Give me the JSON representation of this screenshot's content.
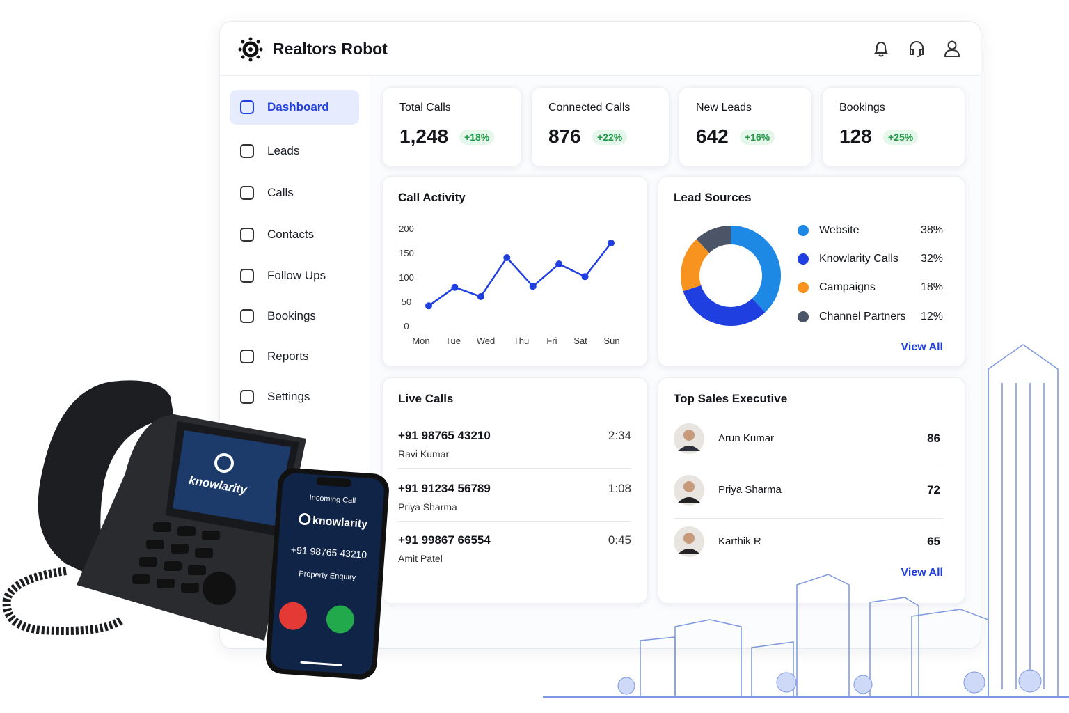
{
  "header": {
    "brand": "Realtors Robot"
  },
  "nav": [
    "Dashboard",
    "Leads",
    "Calls",
    "Contacts",
    "Follow Ups",
    "Bookings",
    "Reports",
    "Settings"
  ],
  "stats": [
    {
      "label": "Total Calls",
      "value": "1,248",
      "change": "+18%"
    },
    {
      "label": "Connected Calls",
      "value": "876",
      "change": "+22%"
    },
    {
      "label": "New Leads",
      "value": "642",
      "change": "+16%"
    },
    {
      "label": "Bookings",
      "value": "128",
      "change": "+25%"
    }
  ],
  "call_activity": {
    "type": "line",
    "title": "Call Activity",
    "categories": [
      "Mon",
      "Tue",
      "Wed",
      null,
      "Thu",
      "Fri",
      "Sat",
      "Sun"
    ],
    "values": [
      41,
      79,
      60,
      140,
      81,
      127,
      101,
      170
    ],
    "color": "#1f3fe0",
    "ylim": [
      0,
      200
    ],
    "yticks": [
      0,
      50,
      100,
      150,
      200
    ]
  },
  "lead_sources": {
    "type": "donut",
    "title": "Lead Sources",
    "categories": [
      "Website",
      "Knowlarity Calls",
      "Campaigns",
      "Channel Partners"
    ],
    "values": [
      38,
      32,
      18,
      12
    ],
    "value_labels": [
      "38%",
      "32%",
      "18%",
      "12%"
    ],
    "colors": [
      "#1e88e5",
      "#1f3fe0",
      "#f7931e",
      "#4b5567"
    ],
    "link": "View All"
  },
  "live_calls": {
    "title": "Live Calls",
    "calls": [
      {
        "number": "+91 98765 43210",
        "name": "Ravi Kumar",
        "duration": "2:34"
      },
      {
        "number": "+91 91234 56789",
        "name": "Priya Sharma",
        "duration": "1:08"
      },
      {
        "number": "+91 99867 66554",
        "name": "Amit Patel",
        "duration": "0:45"
      }
    ]
  },
  "top_sales": {
    "title": "Top Sales Executive",
    "executives": [
      {
        "name": "Arun Kumar",
        "score": 86
      },
      {
        "name": "Priya Sharma",
        "score": 72
      },
      {
        "name": "Karthik R",
        "score": 65
      }
    ],
    "link": "View All"
  },
  "desk_phone": {
    "screen_brand": "knowlarity"
  },
  "mobile": {
    "status": "Incoming Call",
    "brand": "knowlarity",
    "number": "+91 98765 43210",
    "caption": "Property Enquiry"
  }
}
